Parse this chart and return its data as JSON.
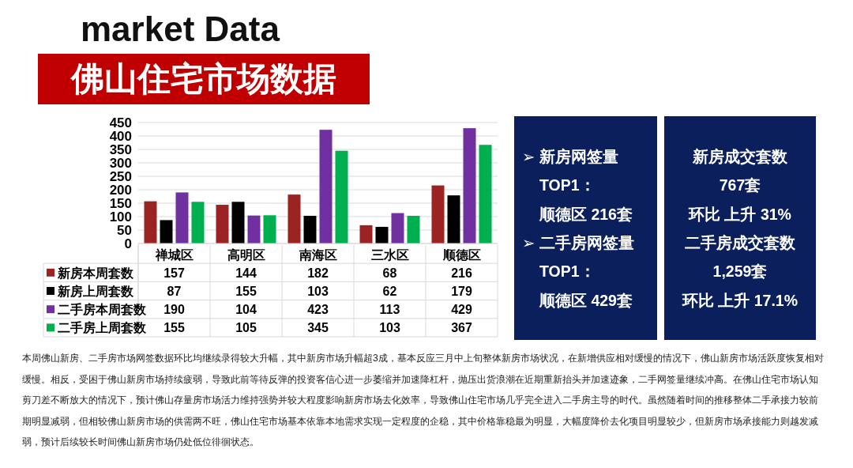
{
  "chart_data": [
    {
      "type": "bar",
      "title": "market Data",
      "subtitle": "佛山住宅市场数据",
      "categories": [
        "禅城区",
        "高明区",
        "南海区",
        "三水区",
        "顺德区"
      ],
      "series": [
        {
          "name": "新房本周套数",
          "color": "#9b2423",
          "values": [
            157,
            144,
            182,
            68,
            216
          ]
        },
        {
          "name": "新房上周套数",
          "color": "#000000",
          "values": [
            87,
            155,
            103,
            62,
            179
          ]
        },
        {
          "name": "二手房本周套数",
          "color": "#7030a0",
          "values": [
            190,
            104,
            423,
            113,
            429
          ]
        },
        {
          "name": "二手房上周套数",
          "color": "#00b050",
          "values": [
            155,
            105,
            345,
            103,
            367
          ]
        }
      ],
      "ylim": [
        0,
        450
      ],
      "yticks": [
        0,
        50,
        100,
        150,
        200,
        250,
        300,
        350,
        400,
        450
      ],
      "grid": "y",
      "legend": "bottom",
      "data_labels": true,
      "annotations": [
        "本周佛山新房、二手房市场网签数据环比均继续录得较大升幅，其中新房市场升幅超3成，基本反应三月中上旬整体新房市场状况，在新增供应相对缓慢的情况下，佛山新房市场活跃度恢复相对缓慢。相反，受困于佛山新房市场持续疲弱，导致此前等待反弹的投资客信心进一步萎缩并加速降杠杆，抛压出货浪潮在近期重新抬头并加速迹象，二手网签量继续冲高。在佛山住宅市场认知剪刀差不断放大的情况下，预计佛山存量房市场活力维持强势并较大程度影响新房市场去化效率，导致佛山住宅市场几乎完全进入二手房主导的时代。虽然随着时间的推移整体二手承接力较前期明显减弱，但相较佛山新房市场的供需两不旺，佛山住宅市场基本依靠本地需求实现一定程度的企稳，其中价格靠稳最为明显，大幅度降价去化项目明显较少，但新房市场承接能力则越发减弱，预计后续较长时间佛山新房市场仍处低位徘徊状态。"
      ]
    },
    {
      "type": "other",
      "annotations": [
        "➢ 新房网签量",
        "TOP1：",
        "顺德区 216套",
        "➢ 二手房网签量",
        "TOP1：",
        "顺德区 429套"
      ]
    },
    {
      "type": "other",
      "annotations": [
        "新房成交套数",
        "767套",
        "环比 上升 31%",
        "二手房成交套数",
        "1,259套",
        "环比 上升 17.1%"
      ]
    }
  ]
}
